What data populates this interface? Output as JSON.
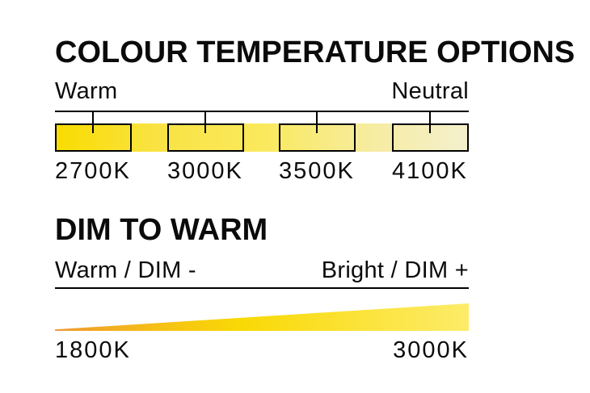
{
  "page": {
    "background": "#ffffff",
    "text_color": "#0b0b0b",
    "line_color": "#000000"
  },
  "colour_temperature_section": {
    "title": "COLOUR TEMPERATURE OPTIONS",
    "scale_left_label": "Warm",
    "scale_right_label": "Neutral",
    "options": [
      {
        "kelvin": "2700K"
      },
      {
        "kelvin": "3000K"
      },
      {
        "kelvin": "3500K"
      },
      {
        "kelvin": "4100K"
      }
    ],
    "gradient_colors": [
      "#F9DC00",
      "#F9E344",
      "#FAE95C",
      "#F6ECA4",
      "#F4F0CE"
    ]
  },
  "dim_to_warm_section": {
    "title": "DIM TO WARM",
    "scale_left_label": "Warm / DIM -",
    "scale_right_label": "Bright / DIM +",
    "min_kelvin": "1800K",
    "max_kelvin": "3000K",
    "gradient_colors": [
      "#EE9830",
      "#F9D905",
      "#FDEC6A"
    ]
  }
}
